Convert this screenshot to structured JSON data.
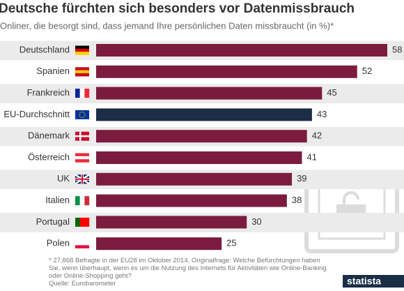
{
  "chart_data": {
    "type": "bar",
    "orientation": "horizontal",
    "title": "Deutsche fürchten sich besonders vor Datenmissbrauch",
    "subtitle": "Onliner, die besorgt sind, dass jemand Ihre persönlichen Daten missbraucht (in %)*",
    "categories": [
      "Deutschland",
      "Spanien",
      "Frankreich",
      "EU-Durchschnitt",
      "Dänemark",
      "Österreich",
      "UK",
      "Italien",
      "Portugal",
      "Polen"
    ],
    "values": [
      58,
      52,
      45,
      43,
      42,
      41,
      39,
      38,
      30,
      25
    ],
    "colors": [
      "#7b1c3f",
      "#7b1c3f",
      "#7b1c3f",
      "#1b2e48",
      "#7b1c3f",
      "#7b1c3f",
      "#7b1c3f",
      "#7b1c3f",
      "#7b1c3f",
      "#7b1c3f"
    ],
    "footnote": "* 27.868 Befragte in der EU28 im Oktober 2014, Originalfrage: Welche Befürchtungen haben Sie, wenn überhaupt, wenn es um die Nutzung des Internets für Aktivitäten wie Online-Banking oder Online-Shopping geht?",
    "source": "Quelle: Eurobarometer",
    "brand": "statista"
  }
}
